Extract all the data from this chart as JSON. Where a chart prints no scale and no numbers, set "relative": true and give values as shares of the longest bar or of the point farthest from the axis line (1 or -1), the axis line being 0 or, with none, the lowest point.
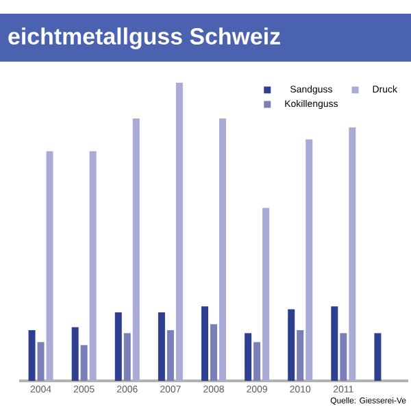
{
  "chart_data": {
    "type": "bar",
    "title": "eichtmetallguss Schweiz",
    "relative": true,
    "legend": "top right",
    "categories": [
      "2004",
      "2005",
      "2006",
      "2007",
      "2008",
      "2009",
      "2010",
      "2011",
      null
    ],
    "series": [
      {
        "name": "Sandguss",
        "color": "#2e3f8f",
        "values": [
          0.17,
          0.18,
          0.23,
          0.23,
          0.25,
          0.16,
          0.24,
          0.25,
          0.16
        ]
      },
      {
        "name": "Kokillenguss",
        "color": "#7b7fb8",
        "values": [
          0.13,
          0.12,
          0.16,
          0.17,
          0.19,
          0.13,
          0.17,
          0.16,
          null
        ]
      },
      {
        "name": "Druck",
        "color": "#a9abd6",
        "values": [
          0.77,
          0.77,
          0.88,
          1,
          0.88,
          0.58,
          0.81,
          0.85,
          null
        ]
      }
    ],
    "annotations": [
      "Quelle: Giesserei-Ve"
    ]
  }
}
